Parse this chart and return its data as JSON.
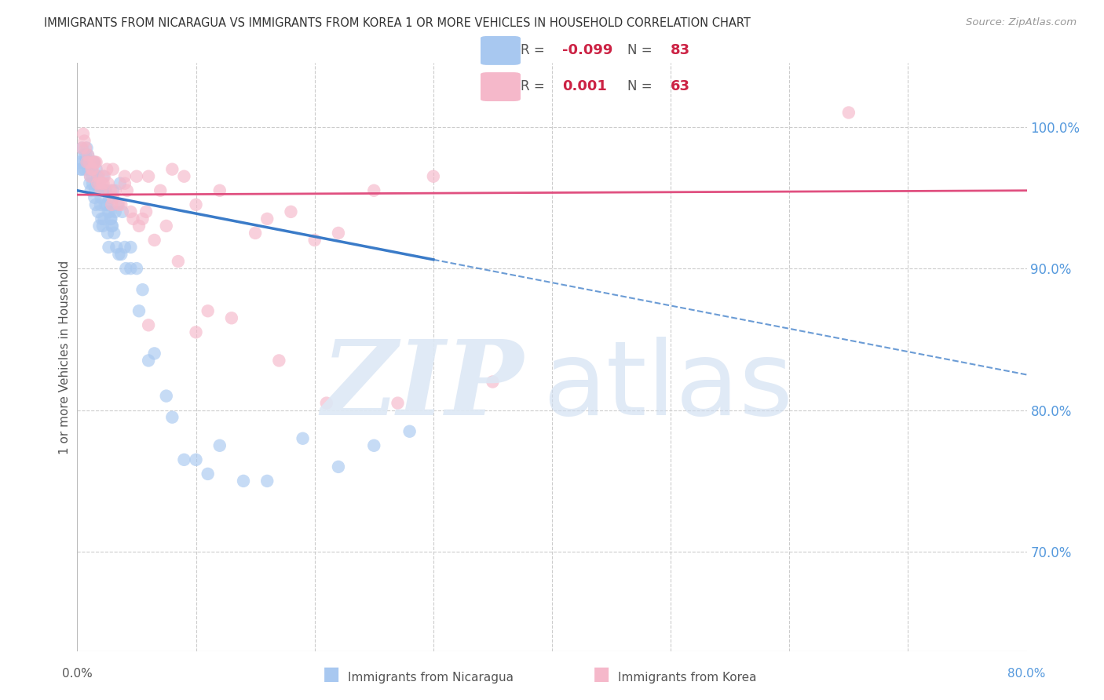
{
  "title": "IMMIGRANTS FROM NICARAGUA VS IMMIGRANTS FROM KOREA 1 OR MORE VEHICLES IN HOUSEHOLD CORRELATION CHART",
  "source": "Source: ZipAtlas.com",
  "ylabel": "1 or more Vehicles in Household",
  "x_range": [
    0.0,
    80.0
  ],
  "y_range": [
    63.0,
    104.5
  ],
  "y_ticks": [
    70.0,
    80.0,
    90.0,
    100.0
  ],
  "y_tick_labels": [
    "70.0%",
    "80.0%",
    "90.0%",
    "100.0%"
  ],
  "legend_r1": "-0.099",
  "legend_n1": "83",
  "legend_r2": "0.001",
  "legend_n2": "63",
  "blue_color": "#A8C8F0",
  "pink_color": "#F5B8CA",
  "trendline_blue_color": "#3A7BC8",
  "trendline_pink_color": "#E05080",
  "blue_trend_x0": 0.0,
  "blue_trend_y0": 95.5,
  "blue_trend_x1": 80.0,
  "blue_trend_y1": 82.5,
  "blue_solid_cutoff": 30.0,
  "pink_trend_x0": 0.0,
  "pink_trend_y0": 95.2,
  "pink_trend_x1": 80.0,
  "pink_trend_y1": 95.5,
  "nicaragua_x": [
    0.2,
    0.3,
    0.4,
    0.5,
    0.6,
    0.7,
    0.8,
    0.9,
    1.0,
    1.1,
    1.2,
    1.3,
    1.4,
    1.5,
    1.6,
    1.7,
    1.8,
    1.9,
    2.0,
    2.1,
    2.2,
    2.3,
    2.4,
    2.5,
    2.6,
    2.7,
    2.8,
    2.9,
    3.0,
    3.2,
    3.4,
    3.6,
    3.8,
    4.0,
    4.5,
    5.0,
    5.5,
    6.5,
    8.0,
    10.0,
    12.0,
    16.0,
    22.0,
    28.0,
    0.35,
    0.55,
    0.75,
    0.95,
    1.05,
    1.15,
    1.25,
    1.35,
    1.45,
    1.55,
    1.65,
    1.75,
    1.85,
    1.95,
    2.05,
    2.15,
    2.25,
    2.35,
    2.55,
    2.65,
    2.75,
    2.85,
    2.95,
    3.1,
    3.3,
    3.5,
    3.7,
    4.1,
    4.5,
    5.2,
    6.0,
    7.5,
    9.0,
    11.0,
    14.0,
    19.0,
    25.0
  ],
  "nicaragua_y": [
    97.5,
    97.0,
    98.5,
    97.5,
    97.0,
    98.0,
    98.5,
    98.0,
    97.5,
    96.5,
    97.0,
    96.0,
    97.5,
    95.5,
    97.0,
    96.5,
    95.5,
    95.5,
    95.0,
    95.5,
    96.5,
    95.5,
    95.5,
    94.5,
    94.0,
    95.0,
    93.5,
    93.0,
    95.5,
    94.0,
    94.5,
    96.0,
    94.0,
    91.5,
    91.5,
    90.0,
    88.5,
    84.0,
    79.5,
    76.5,
    77.5,
    75.0,
    76.0,
    78.5,
    97.0,
    98.0,
    97.5,
    97.0,
    96.0,
    95.5,
    96.5,
    97.5,
    95.0,
    94.5,
    96.0,
    94.0,
    93.0,
    94.5,
    93.5,
    93.0,
    93.5,
    94.5,
    92.5,
    91.5,
    94.0,
    93.5,
    93.0,
    92.5,
    91.5,
    91.0,
    91.0,
    90.0,
    90.0,
    87.0,
    83.5,
    81.0,
    76.5,
    75.5,
    75.0,
    78.0,
    77.5
  ],
  "korea_x": [
    0.5,
    0.7,
    0.9,
    1.0,
    1.2,
    1.4,
    1.6,
    1.8,
    2.0,
    2.2,
    2.5,
    2.8,
    3.0,
    3.5,
    4.0,
    4.5,
    5.0,
    5.5,
    6.0,
    7.0,
    8.0,
    9.0,
    10.0,
    12.0,
    15.0,
    18.0,
    22.0,
    25.0,
    0.4,
    0.6,
    0.8,
    1.1,
    1.3,
    1.5,
    1.7,
    1.9,
    2.1,
    2.3,
    2.6,
    2.9,
    3.2,
    3.7,
    4.2,
    4.7,
    5.2,
    5.8,
    6.5,
    7.5,
    8.5,
    11.0,
    13.0,
    16.0,
    20.0,
    30.0,
    65.0,
    3.0,
    4.0,
    6.0,
    10.0,
    17.0,
    21.0,
    27.0,
    35.0
  ],
  "korea_y": [
    99.5,
    98.5,
    98.0,
    97.5,
    97.0,
    97.5,
    97.5,
    96.5,
    95.5,
    96.0,
    97.0,
    95.5,
    97.0,
    94.5,
    96.5,
    94.0,
    96.5,
    93.5,
    96.5,
    95.5,
    97.0,
    96.5,
    94.5,
    95.5,
    92.5,
    94.0,
    92.5,
    95.5,
    98.5,
    99.0,
    97.5,
    96.5,
    97.0,
    97.5,
    96.0,
    96.0,
    96.0,
    96.5,
    96.0,
    94.5,
    95.5,
    94.5,
    95.5,
    93.5,
    93.0,
    94.0,
    92.0,
    93.0,
    90.5,
    87.0,
    86.5,
    93.5,
    92.0,
    96.5,
    101.0,
    95.0,
    96.0,
    86.0,
    85.5,
    83.5,
    80.5,
    80.5,
    82.0
  ]
}
